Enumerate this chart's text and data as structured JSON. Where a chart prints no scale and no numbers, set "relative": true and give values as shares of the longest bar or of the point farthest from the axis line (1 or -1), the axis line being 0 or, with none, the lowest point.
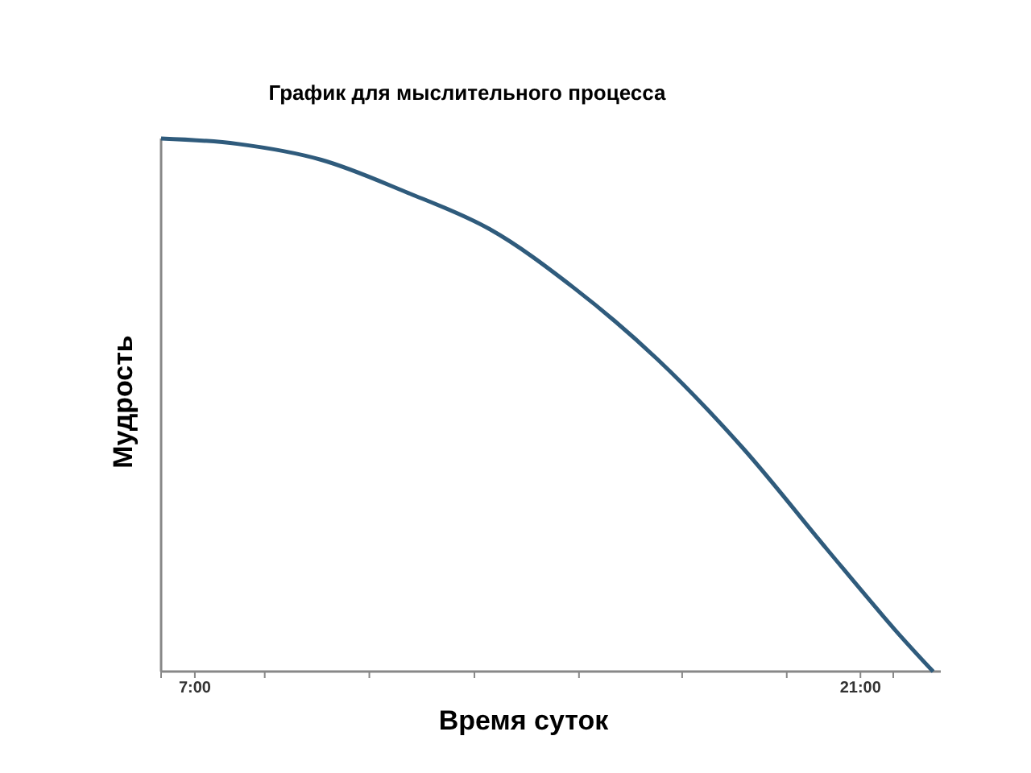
{
  "chart_data": {
    "type": "line",
    "title": "График для мыслительного процесса",
    "xlabel": "Время суток",
    "ylabel": "Мудрость",
    "relative": true,
    "x": [
      6.29,
      7.89,
      9.66,
      11.43,
      13.2,
      14.97,
      16.74,
      18.52,
      20.29,
      21.71,
      22.53
    ],
    "series": [
      {
        "color": "#2f5b7c",
        "values": [
          1,
          0.99,
          0.96,
          0.9,
          0.83,
          0.72,
          0.585,
          0.42,
          0.23,
          0.08,
          0
        ]
      }
    ],
    "xlim": [
      6.29,
      22.69
    ],
    "xticks": [
      {
        "value": 6.29,
        "label": null
      },
      {
        "value": 7,
        "label": "7:00"
      },
      {
        "value": 8.47,
        "label": null
      },
      {
        "value": 10.67,
        "label": null
      },
      {
        "value": 12.88,
        "label": null
      },
      {
        "value": 15.08,
        "label": null
      },
      {
        "value": 17.25,
        "label": null
      },
      {
        "value": 19.45,
        "label": null
      },
      {
        "value": 21,
        "label": "21:00"
      },
      {
        "value": 21.69,
        "label": null
      }
    ],
    "grid": false
  }
}
